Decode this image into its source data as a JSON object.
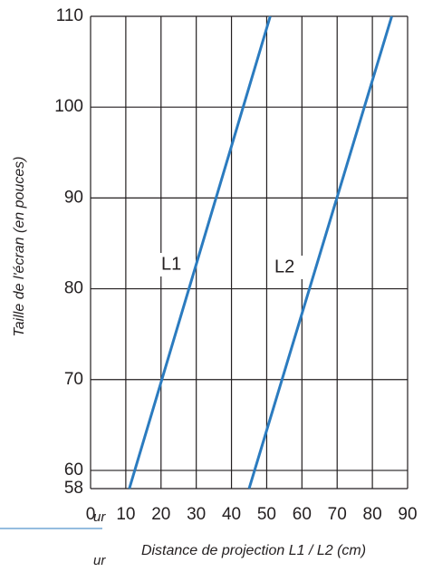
{
  "chart_data": {
    "type": "line",
    "x_label": "Distance de projection L1 / L2 (cm)",
    "y_label": "Taille de l'écran (en pouces)",
    "series": [
      {
        "name": "L1",
        "color": "#2b7bbf",
        "x": [
          11,
          51
        ],
        "values": [
          58,
          110
        ]
      },
      {
        "name": "L2",
        "color": "#2b7bbf",
        "x": [
          45,
          85.5
        ],
        "values": [
          58,
          110
        ]
      }
    ],
    "xlim": [
      0,
      90
    ],
    "xticks": [
      0,
      10,
      20,
      30,
      40,
      50,
      60,
      70,
      80,
      90
    ],
    "ylim": [
      58,
      110
    ],
    "yticks": [
      58,
      60,
      70,
      80,
      90,
      100,
      110
    ],
    "grid": true,
    "annotations": [
      "ur",
      "ur"
    ]
  }
}
